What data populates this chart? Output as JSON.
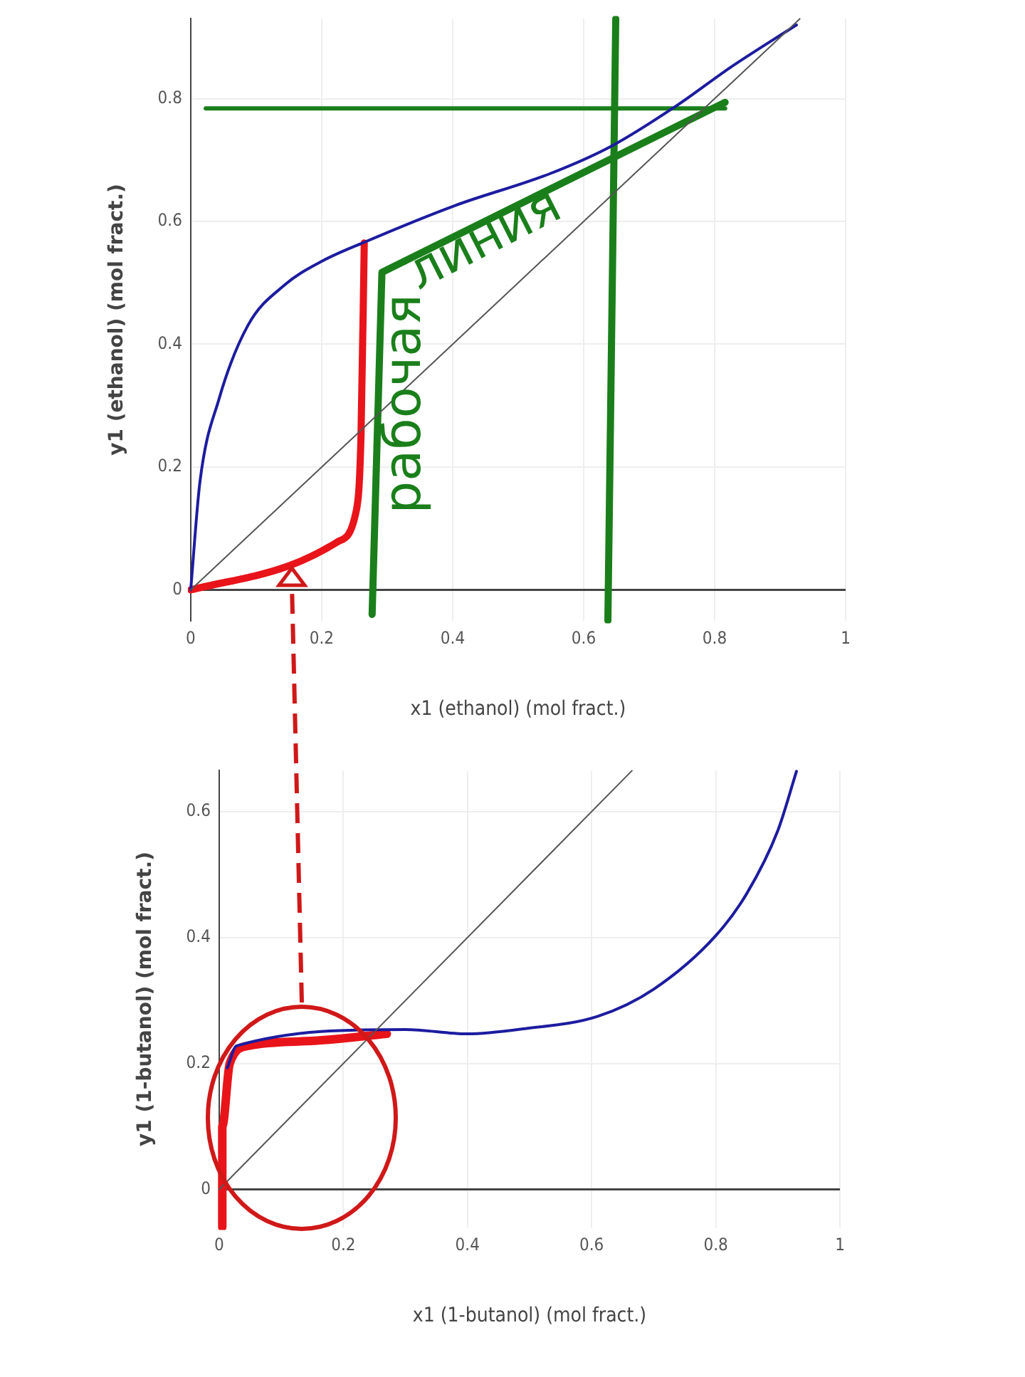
{
  "chart_data": [
    {
      "type": "line",
      "xlabel": "x1 (ethanol) (mol fract.)",
      "ylabel": "y1 (ethanol) (mol fract.)",
      "xlim": [
        0,
        1
      ],
      "xticks": [
        0,
        0.2,
        0.4,
        0.6,
        0.8,
        1
      ],
      "ylim": [
        -0.05,
        0.93
      ],
      "yticks": [
        0,
        0.2,
        0.4,
        0.6,
        0.8
      ],
      "grid": true,
      "legend": false,
      "marker": "none",
      "series": [
        {
          "color": "#555555",
          "x": [
            0,
            0.93
          ],
          "values": [
            0,
            0.93
          ]
        },
        {
          "color": "#1c1ca0",
          "x": [
            0,
            0.014,
            0.043,
            0.087,
            0.144,
            0.2,
            0.267,
            0.404,
            0.549,
            0.643,
            0.744,
            0.823,
            0.925
          ],
          "values": [
            0,
            0.175,
            0.31,
            0.43,
            0.497,
            0.535,
            0.567,
            0.626,
            0.678,
            0.723,
            0.79,
            0.85,
            0.92
          ]
        },
        {
          "color": "#e8141a",
          "x": [
            0,
            0.152,
            0.224,
            0.253,
            0.26,
            0.265
          ],
          "values": [
            0,
            0.04,
            0.078,
            0.13,
            0.25,
            0.565
          ]
        },
        {
          "color": "#1a7f1a",
          "x": [
            0.277,
            0.292,
            0.816
          ],
          "values": [
            -0.04,
            0.517,
            0.794
          ]
        },
        {
          "color": "#1a7f1a",
          "x": [
            0.023,
            0.816
          ],
          "values": [
            0.784,
            0.784
          ]
        },
        {
          "color": "#1a7f1a",
          "x": [
            0.637,
            0.649
          ],
          "values": [
            -0.05,
            0.93
          ]
        }
      ],
      "annotations": [
        "рабочая",
        "линия"
      ]
    },
    {
      "type": "line",
      "xlabel": "x1 (1-butanol) (mol fract.)",
      "ylabel": "y1 (1-butanol) (mol fract.)",
      "xlim": [
        0,
        1
      ],
      "xticks": [
        0,
        0.2,
        0.4,
        0.6,
        0.8,
        1
      ],
      "ylim": [
        -0.06,
        0.665
      ],
      "yticks": [
        0,
        0.2,
        0.4,
        0.6
      ],
      "grid": true,
      "legend": false,
      "marker": "none",
      "series": [
        {
          "color": "#555555",
          "x": [
            0,
            0.665
          ],
          "values": [
            0,
            0.665
          ]
        },
        {
          "color": "#1c1ca0",
          "x": [
            0.013,
            0.028,
            0.3,
            0.4,
            0.49,
            0.61,
            0.7,
            0.8,
            0.85,
            0.9,
            0.93
          ],
          "values": [
            0.193,
            0.228,
            0.254,
            0.247,
            0.255,
            0.275,
            0.318,
            0.403,
            0.47,
            0.57,
            0.664
          ]
        },
        {
          "color": "#e8141a",
          "x": [
            0.005,
            0.005,
            0.017,
            0.047,
            0.154,
            0.27
          ],
          "values": [
            -0.06,
            0.1,
            0.2,
            0.228,
            0.236,
            0.247
          ]
        }
      ]
    }
  ]
}
